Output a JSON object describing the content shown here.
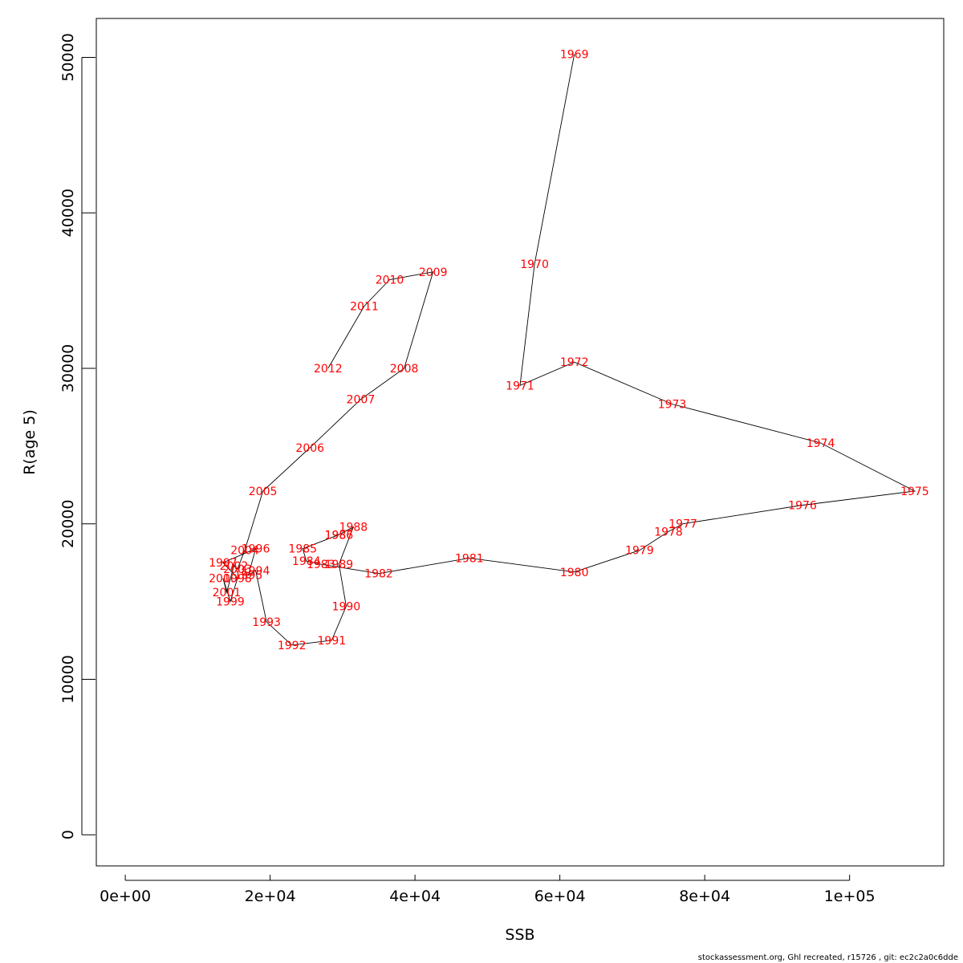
{
  "chart_data": {
    "type": "line",
    "title": "",
    "xlabel": "SSB",
    "ylabel": "R(age 5)",
    "xlim": [
      -4000,
      113000
    ],
    "ylim": [
      -2000,
      52500
    ],
    "x_ticks": [
      0,
      20000,
      40000,
      60000,
      80000,
      100000
    ],
    "x_tick_labels": [
      "0e+00",
      "2e+04",
      "4e+04",
      "6e+04",
      "8e+04",
      "1e+05"
    ],
    "y_ticks": [
      0,
      10000,
      20000,
      30000,
      40000,
      50000
    ],
    "y_tick_labels": [
      "0",
      "10000",
      "20000",
      "30000",
      "40000",
      "50000"
    ],
    "grid": false,
    "line_color": "#000000",
    "label_color": "#ff0000",
    "series": [
      {
        "points": [
          {
            "label": "1969",
            "x": 62000,
            "y": 50200
          },
          {
            "label": "1970",
            "x": 56500,
            "y": 36700
          },
          {
            "label": "1971",
            "x": 54500,
            "y": 28900
          },
          {
            "label": "1972",
            "x": 62000,
            "y": 30400
          },
          {
            "label": "1973",
            "x": 75500,
            "y": 27700
          },
          {
            "label": "1974",
            "x": 96000,
            "y": 25200
          },
          {
            "label": "1975",
            "x": 109000,
            "y": 22100
          },
          {
            "label": "1976",
            "x": 93500,
            "y": 21200
          },
          {
            "label": "1977",
            "x": 77000,
            "y": 20000
          },
          {
            "label": "1978",
            "x": 75000,
            "y": 19500
          },
          {
            "label": "1979",
            "x": 71000,
            "y": 18300
          },
          {
            "label": "1980",
            "x": 62000,
            "y": 16900
          },
          {
            "label": "1981",
            "x": 47500,
            "y": 17800
          },
          {
            "label": "1982",
            "x": 35000,
            "y": 16800
          },
          {
            "label": "1983",
            "x": 27000,
            "y": 17400
          },
          {
            "label": "1984",
            "x": 25000,
            "y": 17600
          },
          {
            "label": "1985",
            "x": 24500,
            "y": 18400
          },
          {
            "label": "1986",
            "x": 29500,
            "y": 19300
          },
          {
            "label": "1987",
            "x": 29500,
            "y": 19300
          },
          {
            "label": "1988",
            "x": 31500,
            "y": 19800
          },
          {
            "label": "1989",
            "x": 29500,
            "y": 17400
          },
          {
            "label": "1990",
            "x": 30500,
            "y": 14700
          },
          {
            "label": "1991",
            "x": 28500,
            "y": 12500
          },
          {
            "label": "1992",
            "x": 23000,
            "y": 12200
          },
          {
            "label": "1993",
            "x": 19500,
            "y": 13700
          },
          {
            "label": "1994",
            "x": 18000,
            "y": 17000
          },
          {
            "label": "1995",
            "x": 17000,
            "y": 16700
          },
          {
            "label": "1996",
            "x": 18000,
            "y": 18400
          },
          {
            "label": "1997",
            "x": 13500,
            "y": 17500
          },
          {
            "label": "1998",
            "x": 15500,
            "y": 16500
          },
          {
            "label": "1999",
            "x": 14500,
            "y": 15000
          },
          {
            "label": "2000",
            "x": 13500,
            "y": 16500
          },
          {
            "label": "2001",
            "x": 14000,
            "y": 15600
          },
          {
            "label": "2002",
            "x": 15000,
            "y": 17300
          },
          {
            "label": "2003",
            "x": 15500,
            "y": 17100
          },
          {
            "label": "2004",
            "x": 16500,
            "y": 18300
          },
          {
            "label": "2005",
            "x": 19000,
            "y": 22100
          },
          {
            "label": "2006",
            "x": 25500,
            "y": 24900
          },
          {
            "label": "2007",
            "x": 32500,
            "y": 28000
          },
          {
            "label": "2008",
            "x": 38500,
            "y": 30000
          },
          {
            "label": "2009",
            "x": 42500,
            "y": 36200
          },
          {
            "label": "2010",
            "x": 36500,
            "y": 35700
          },
          {
            "label": "2011",
            "x": 33000,
            "y": 34000
          },
          {
            "label": "2012",
            "x": 28000,
            "y": 30000
          }
        ]
      }
    ]
  },
  "footer": "stockassessment.org, Ghl  recreated, r15726 , git: ec2c2a0c6dde"
}
